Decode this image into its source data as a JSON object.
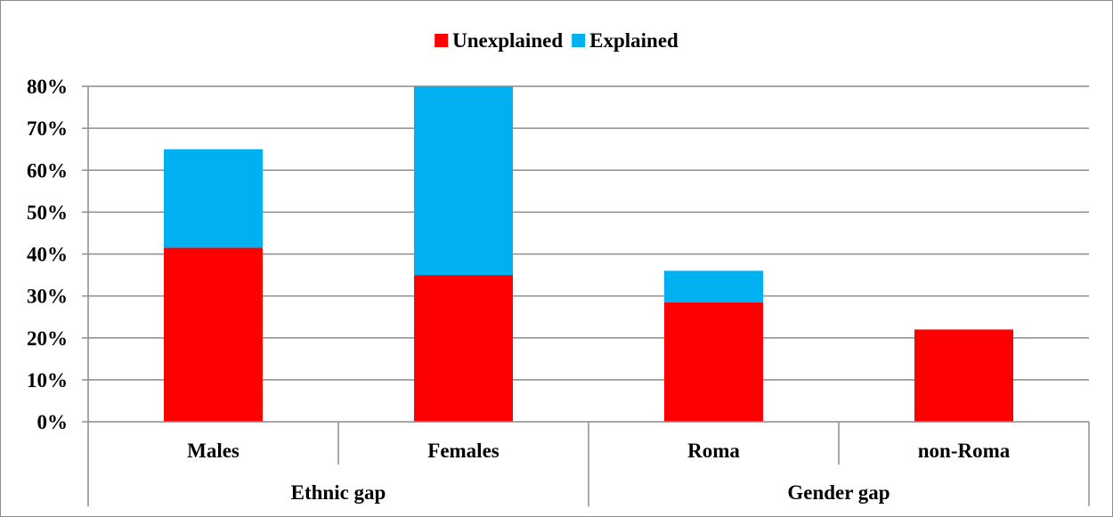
{
  "chart_data": {
    "type": "bar",
    "stacked": true,
    "title": "",
    "xlabel": "",
    "ylabel": "",
    "categories": [
      "Males",
      "Females",
      "Roma",
      "non-Roma"
    ],
    "groups": [
      {
        "label": "Ethnic gap",
        "categories": [
          "Males",
          "Females"
        ]
      },
      {
        "label": "Gender gap",
        "categories": [
          "Roma",
          "non-Roma"
        ]
      }
    ],
    "series": [
      {
        "name": "Unexplained",
        "color": "#ff0000",
        "values": [
          0.415,
          0.35,
          0.285,
          0.22
        ]
      },
      {
        "name": "Explained",
        "color": "#00b0f0",
        "values": [
          0.235,
          0.45,
          0.075,
          0.0
        ]
      }
    ],
    "yticks": [
      0,
      0.1,
      0.2,
      0.3,
      0.4,
      0.5,
      0.6,
      0.7,
      0.8
    ],
    "ytick_labels": [
      "0%",
      "10%",
      "20%",
      "30%",
      "40%",
      "50%",
      "60%",
      "70%",
      "80%"
    ],
    "ylim": [
      0,
      0.8
    ],
    "grid": true,
    "legend_position": "top-center"
  }
}
